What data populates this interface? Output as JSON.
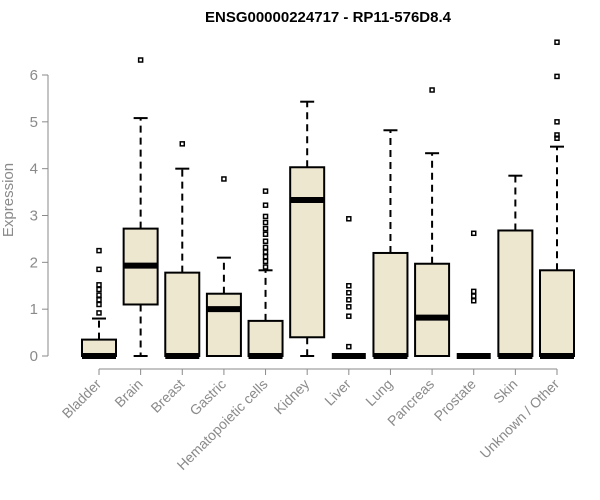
{
  "chart_data": {
    "type": "box",
    "title": "ENSG00000224717 - RP11-576D8.4",
    "ylabel": "Expression",
    "xlabel": "",
    "ylim": [
      0,
      6.8
    ],
    "yticks": [
      0,
      1,
      2,
      3,
      4,
      5,
      6
    ],
    "categories": [
      "Bladder",
      "Brain",
      "Breast",
      "Gastric",
      "Hematopoietic cells",
      "Kidney",
      "Liver",
      "Lung",
      "Pancreas",
      "Prostate",
      "Skin",
      "Unknown / Other"
    ],
    "series": [
      {
        "q1": 0.0,
        "median": 0.0,
        "q3": 0.35,
        "whisker_low": 0.0,
        "whisker_high": 0.8,
        "outliers": [
          0.92,
          1.1,
          1.2,
          1.3,
          1.42,
          1.52,
          1.85,
          2.25
        ]
      },
      {
        "q1": 1.1,
        "median": 1.93,
        "q3": 2.72,
        "whisker_low": 0.0,
        "whisker_high": 5.08,
        "outliers": [
          6.32
        ]
      },
      {
        "q1": 0.0,
        "median": 0.0,
        "q3": 1.78,
        "whisker_low": 0.0,
        "whisker_high": 4.0,
        "outliers": [
          4.53
        ]
      },
      {
        "q1": 0.0,
        "median": 1.0,
        "q3": 1.33,
        "whisker_low": 0.0,
        "whisker_high": 2.1,
        "outliers": [
          3.78
        ]
      },
      {
        "q1": 0.0,
        "median": 0.0,
        "q3": 0.75,
        "whisker_low": 0.0,
        "whisker_high": 1.83,
        "outliers": [
          1.9,
          2.02,
          2.12,
          2.22,
          2.32,
          2.45,
          2.6,
          2.72,
          2.85,
          2.98,
          3.22,
          3.52
        ]
      },
      {
        "q1": 0.4,
        "median": 3.33,
        "q3": 4.03,
        "whisker_low": 0.0,
        "whisker_high": 5.43,
        "outliers": []
      },
      {
        "q1": 0.0,
        "median": 0.0,
        "q3": 0.0,
        "whisker_low": 0.0,
        "whisker_high": 0.0,
        "outliers": [
          0.2,
          0.85,
          1.05,
          1.2,
          1.35,
          1.5,
          2.93
        ]
      },
      {
        "q1": 0.0,
        "median": 0.0,
        "q3": 2.2,
        "whisker_low": 0.0,
        "whisker_high": 4.82,
        "outliers": []
      },
      {
        "q1": 0.0,
        "median": 0.82,
        "q3": 1.97,
        "whisker_low": 0.0,
        "whisker_high": 4.33,
        "outliers": [
          5.68
        ]
      },
      {
        "q1": 0.0,
        "median": 0.0,
        "q3": 0.0,
        "whisker_low": 0.0,
        "whisker_high": 0.0,
        "outliers": [
          1.18,
          1.28,
          1.38,
          2.62
        ]
      },
      {
        "q1": 0.0,
        "median": 0.0,
        "q3": 2.68,
        "whisker_low": 0.0,
        "whisker_high": 3.85,
        "outliers": []
      },
      {
        "q1": 0.0,
        "median": 0.0,
        "q3": 1.83,
        "whisker_low": 0.0,
        "whisker_high": 4.47,
        "outliers": [
          4.65,
          4.72,
          5.0,
          5.97,
          6.7
        ]
      }
    ],
    "grid": false,
    "legend": "none"
  }
}
